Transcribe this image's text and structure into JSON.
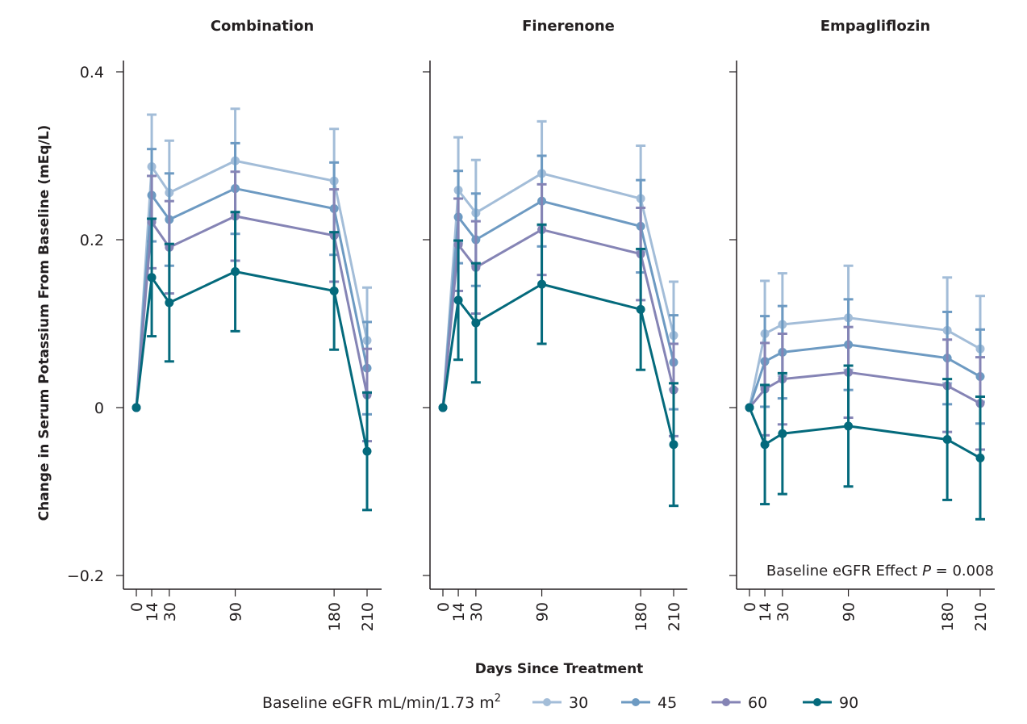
{
  "chart_data": {
    "type": "line",
    "title": "",
    "xlabel": "Days Since Treatment",
    "ylabel": "Change in Serum Potassium From Baseline (mEq/L)",
    "x": [
      0,
      14,
      30,
      90,
      180,
      210
    ],
    "x_tick_labels": [
      "0",
      "14",
      "30",
      "90",
      "180",
      "210"
    ],
    "ylim": [
      -0.22,
      0.4
    ],
    "y_ticks": [
      -0.2,
      0,
      0.2,
      0.4
    ],
    "y_tick_labels": [
      "−0.2",
      "0",
      "0.2",
      "0.4"
    ],
    "grid": false,
    "error_bars": true,
    "legend": {
      "title": "Baseline eGFR mL/min/1.73 m",
      "title_superscript": "2",
      "placement": "bottom-center",
      "entries": [
        "30",
        "45",
        "60",
        "90"
      ]
    },
    "series_colors": {
      "30": "#a3bdd8",
      "45": "#6d9ac2",
      "60": "#8584b5",
      "90": "#046a7c"
    },
    "panels": [
      {
        "title": "Combination",
        "annotation": null,
        "series": [
          {
            "name": "30",
            "values": [
              0,
              0.287,
              0.256,
              0.294,
              0.27,
              0.08
            ],
            "err": [
              0,
              0.062,
              0.062,
              0.062,
              0.062,
              0.063
            ]
          },
          {
            "name": "45",
            "values": [
              0,
              0.253,
              0.224,
              0.261,
              0.237,
              0.047
            ],
            "err": [
              0,
              0.055,
              0.055,
              0.054,
              0.055,
              0.055
            ]
          },
          {
            "name": "60",
            "values": [
              0,
              0.221,
              0.191,
              0.228,
              0.205,
              0.015
            ],
            "err": [
              0,
              0.055,
              0.055,
              0.053,
              0.055,
              0.055
            ]
          },
          {
            "name": "90",
            "values": [
              0,
              0.155,
              0.125,
              0.162,
              0.139,
              -0.052
            ],
            "err": [
              0,
              0.07,
              0.07,
              0.071,
              0.07,
              0.07
            ]
          }
        ]
      },
      {
        "title": "Finerenone",
        "annotation": null,
        "series": [
          {
            "name": "30",
            "values": [
              0,
              0.259,
              0.232,
              0.279,
              0.249,
              0.086
            ],
            "err": [
              0,
              0.063,
              0.063,
              0.062,
              0.063,
              0.064
            ]
          },
          {
            "name": "45",
            "values": [
              0,
              0.227,
              0.2,
              0.246,
              0.216,
              0.054
            ],
            "err": [
              0,
              0.055,
              0.055,
              0.054,
              0.055,
              0.056
            ]
          },
          {
            "name": "60",
            "values": [
              0,
              0.194,
              0.167,
              0.212,
              0.183,
              0.021
            ],
            "err": [
              0,
              0.055,
              0.055,
              0.054,
              0.055,
              0.055
            ]
          },
          {
            "name": "90",
            "values": [
              0,
              0.128,
              0.101,
              0.147,
              0.117,
              -0.044
            ],
            "err": [
              0,
              0.071,
              0.071,
              0.071,
              0.072,
              0.073
            ]
          }
        ]
      },
      {
        "title": "Empagliflozin",
        "annotation": {
          "prefix": "Baseline eGFR Effect ",
          "italic": "P",
          "suffix": " = 0.008"
        },
        "series": [
          {
            "name": "30",
            "values": [
              0,
              0.088,
              0.099,
              0.107,
              0.092,
              0.07
            ],
            "err": [
              0,
              0.063,
              0.061,
              0.062,
              0.063,
              0.063
            ]
          },
          {
            "name": "45",
            "values": [
              0,
              0.055,
              0.066,
              0.075,
              0.059,
              0.037
            ],
            "err": [
              0,
              0.054,
              0.055,
              0.054,
              0.055,
              0.056
            ]
          },
          {
            "name": "60",
            "values": [
              0,
              0.022,
              0.034,
              0.042,
              0.026,
              0.005
            ],
            "err": [
              0,
              0.055,
              0.054,
              0.054,
              0.055,
              0.055
            ]
          },
          {
            "name": "90",
            "values": [
              0,
              -0.044,
              -0.031,
              -0.022,
              -0.038,
              -0.06
            ],
            "err": [
              0,
              0.071,
              0.072,
              0.072,
              0.072,
              0.073
            ]
          }
        ]
      }
    ]
  }
}
